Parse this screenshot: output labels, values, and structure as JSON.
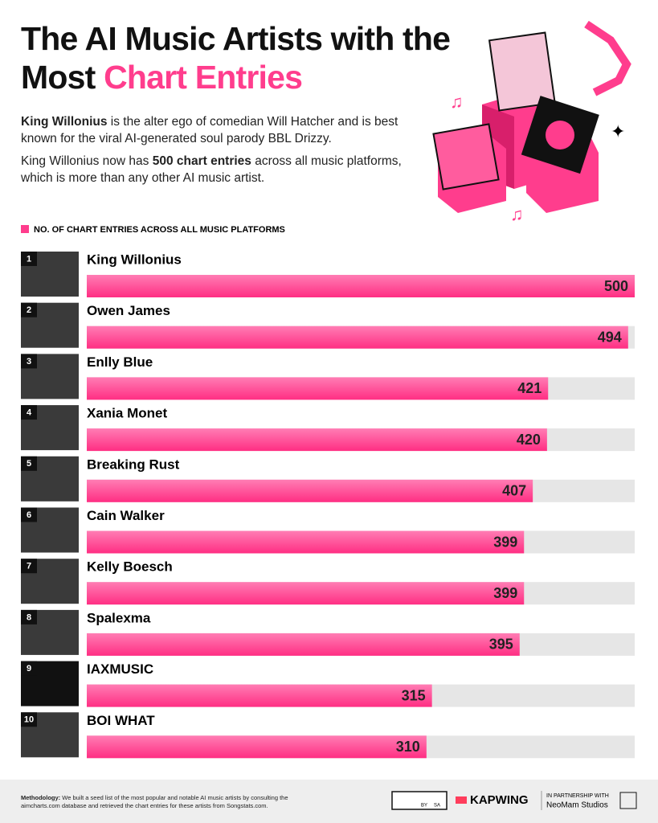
{
  "chart_data": {
    "type": "bar",
    "title": "The AI Music Artists with the",
    "title_line2": "Most",
    "title_highlight": "Chart Entries",
    "intro": [
      [
        {
          "text": "King Willonius",
          "bold": true
        },
        {
          "text": " is the alter ego of comedian Will Hatcher and is best known for the viral AI-generated soul parody BBL Drizzy.",
          "bold": false
        }
      ],
      [
        {
          "text": "King Willonius now has ",
          "bold": false
        },
        {
          "text": "500 chart entries",
          "bold": true
        },
        {
          "text": " across all music platforms, which is more than any other AI music artist.",
          "bold": false
        }
      ]
    ],
    "series": [
      {
        "name": "NO. OF CHART ENTRIES ACROSS ALL MUSIC PLATFORMS",
        "color": "#ff3d8d",
        "values": [
          500,
          494,
          421,
          420,
          407,
          399,
          399,
          395,
          315,
          310
        ]
      }
    ],
    "categories": [
      "King Willonius",
      "Owen James",
      "Enlly Blue",
      "Xania Monet",
      "Breaking Rust",
      "Cain Walker",
      "Kelly Boesch",
      "Spalexma",
      "IAXMUSIC",
      "BOI WHAT"
    ],
    "ranks": [
      1,
      2,
      3,
      4,
      5,
      6,
      7,
      8,
      9,
      10
    ],
    "xlim": [
      0,
      500
    ],
    "track_color": "#e6e6e6",
    "footer": {
      "methodology": [
        {
          "text": "Methodology:",
          "bold": true
        },
        {
          "text": " We built a seed list of the most popular and notable AI music artists by consulting the aimcharts.com database and retrieved the chart entries for these artists from Songstats.com.",
          "bold": false
        }
      ],
      "license": [
        "BY",
        "SA"
      ],
      "brand": "KAPWING",
      "partner_label": "IN PARTNERSHIP WITH",
      "partner": "NeoMam Studios"
    }
  }
}
